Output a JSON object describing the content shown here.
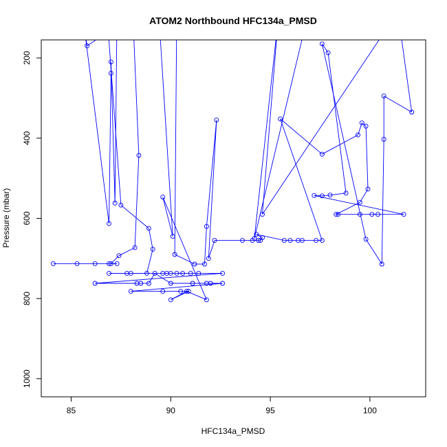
{
  "chart_data": {
    "type": "line",
    "title": "ATOM2 Northbound HFC134a_PMSD",
    "xlabel": "HFC134a_PMSD",
    "ylabel": "Pressure (mbar)",
    "xlim": [
      83.5,
      102.8
    ],
    "ylim": [
      1045,
      155
    ],
    "y_reversed": true,
    "x_ticks": [
      85,
      90,
      95,
      100
    ],
    "y_ticks": [
      200,
      400,
      600,
      800,
      1000
    ],
    "grid": false,
    "legend": "none",
    "series_color": "#0000ff",
    "points": [
      [
        84.1,
        713
      ],
      [
        85.3,
        713
      ],
      [
        86.2,
        713
      ],
      [
        86.9,
        713
      ],
      [
        87.3,
        713
      ],
      [
        87.0,
        713
      ],
      [
        87.4,
        693
      ],
      [
        88.2,
        673
      ],
      [
        88.4,
        443
      ],
      [
        88.1,
        93
      ],
      [
        85.8,
        170
      ],
      [
        85.5,
        60
      ],
      [
        86.9,
        613
      ],
      [
        87.0,
        238
      ],
      [
        87.0,
        210
      ],
      [
        87.2,
        562
      ],
      [
        87.3,
        95
      ],
      [
        86.8,
        90
      ],
      [
        87.5,
        567
      ],
      [
        88.9,
        625
      ],
      [
        89.1,
        677
      ],
      [
        88.8,
        737
      ],
      [
        88.0,
        737
      ],
      [
        87.8,
        737
      ],
      [
        86.9,
        737
      ],
      [
        89.6,
        737
      ],
      [
        89.8,
        737
      ],
      [
        90.0,
        737
      ],
      [
        90.6,
        737
      ],
      [
        90.3,
        737
      ],
      [
        91.0,
        737
      ],
      [
        91.4,
        737
      ],
      [
        92.6,
        737
      ],
      [
        86.2,
        762
      ],
      [
        88.3,
        762
      ],
      [
        88.5,
        762
      ],
      [
        88.9,
        762
      ],
      [
        89.2,
        737
      ],
      [
        90.0,
        762
      ],
      [
        91.1,
        762
      ],
      [
        91.8,
        762
      ],
      [
        92.0,
        762
      ],
      [
        92.6,
        762
      ],
      [
        88.0,
        782
      ],
      [
        89.6,
        782
      ],
      [
        90.5,
        782
      ],
      [
        90.9,
        782
      ],
      [
        90.0,
        803
      ],
      [
        90.8,
        782
      ],
      [
        91.8,
        803
      ],
      [
        89.6,
        547
      ],
      [
        90.1,
        645
      ],
      [
        89.4,
        90
      ],
      [
        90.3,
        90
      ],
      [
        90.2,
        690
      ],
      [
        91.2,
        714
      ],
      [
        91.7,
        714
      ],
      [
        91.8,
        620
      ],
      [
        92.3,
        355
      ],
      [
        91.9,
        700
      ],
      [
        92.2,
        655
      ],
      [
        93.6,
        655
      ],
      [
        94.1,
        655
      ],
      [
        94.4,
        655
      ],
      [
        94.5,
        655
      ],
      [
        94.6,
        648
      ],
      [
        94.3,
        640
      ],
      [
        95.7,
        655
      ],
      [
        96.0,
        655
      ],
      [
        96.4,
        655
      ],
      [
        96.6,
        655
      ],
      [
        97.3,
        655
      ],
      [
        97.6,
        655
      ],
      [
        95.5,
        352
      ],
      [
        97.6,
        440
      ],
      [
        99.4,
        392
      ],
      [
        99.6,
        362
      ],
      [
        99.8,
        370
      ],
      [
        99.9,
        527
      ],
      [
        99.5,
        560
      ],
      [
        98.3,
        590
      ],
      [
        98.4,
        590
      ],
      [
        99.5,
        590
      ],
      [
        100.1,
        590
      ],
      [
        100.4,
        590
      ],
      [
        101.7,
        590
      ],
      [
        97.2,
        543
      ],
      [
        97.6,
        544
      ],
      [
        98.0,
        542
      ],
      [
        98.8,
        537
      ],
      [
        97.9,
        187
      ],
      [
        97.6,
        165
      ],
      [
        99.8,
        652
      ],
      [
        100.6,
        714
      ],
      [
        100.7,
        403
      ],
      [
        100.7,
        295
      ],
      [
        102.1,
        335
      ],
      [
        101.4,
        85
      ],
      [
        94.6,
        590
      ],
      [
        95.4,
        100
      ],
      [
        94.2,
        650
      ],
      [
        96.9,
        90
      ]
    ]
  }
}
